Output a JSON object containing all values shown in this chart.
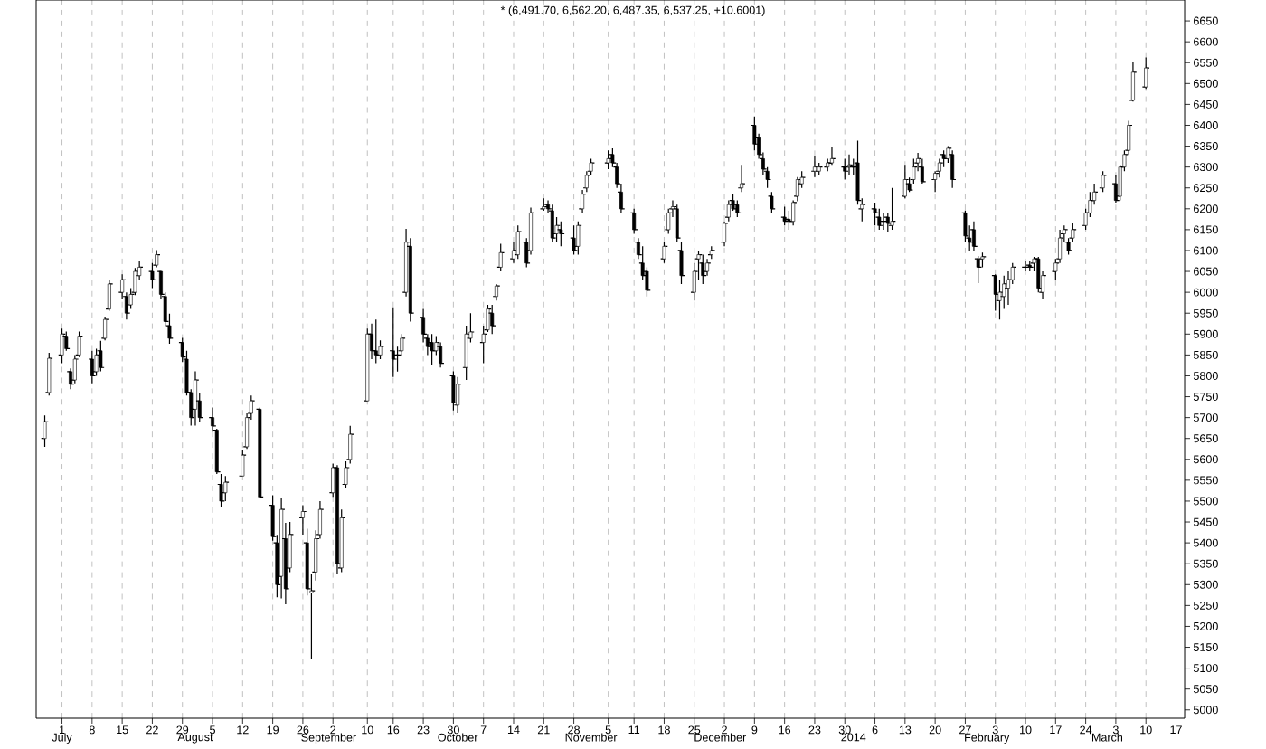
{
  "chart_data": {
    "type": "candlestick",
    "title": "* (6,491.70, 6,562.20, 6,487.35, 6,537.25, +10.6001)",
    "color": "#000000",
    "grid": "x",
    "x": [
      "2013-06-27",
      "2013-06-28",
      "2013-07-01",
      "2013-07-02",
      "2013-07-03",
      "2013-07-04",
      "2013-07-05",
      "2013-07-08",
      "2013-07-09",
      "2013-07-10",
      "2013-07-11",
      "2013-07-12",
      "2013-07-15",
      "2013-07-16",
      "2013-07-17",
      "2013-07-18",
      "2013-07-19",
      "2013-07-22",
      "2013-07-23",
      "2013-07-24",
      "2013-07-25",
      "2013-07-26",
      "2013-07-29",
      "2013-07-30",
      "2013-07-31",
      "2013-08-01",
      "2013-08-02",
      "2013-08-05",
      "2013-08-06",
      "2013-08-07",
      "2013-08-08",
      "2013-08-12",
      "2013-08-13",
      "2013-08-14",
      "2013-08-16",
      "2013-08-19",
      "2013-08-20",
      "2013-08-21",
      "2013-08-22",
      "2013-08-23",
      "2013-08-26",
      "2013-08-27",
      "2013-08-28",
      "2013-08-29",
      "2013-08-30",
      "2013-09-02",
      "2013-09-03",
      "2013-09-04",
      "2013-09-05",
      "2013-09-06",
      "2013-09-10",
      "2013-09-11",
      "2013-09-12",
      "2013-09-13",
      "2013-09-16",
      "2013-09-17",
      "2013-09-18",
      "2013-09-19",
      "2013-09-20",
      "2013-09-23",
      "2013-09-24",
      "2013-09-25",
      "2013-09-26",
      "2013-09-27",
      "2013-09-30",
      "2013-10-01",
      "2013-10-03",
      "2013-10-04",
      "2013-10-07",
      "2013-10-08",
      "2013-10-09",
      "2013-10-10",
      "2013-10-11",
      "2013-10-14",
      "2013-10-15",
      "2013-10-17",
      "2013-10-18",
      "2013-10-21",
      "2013-10-22",
      "2013-10-23",
      "2013-10-24",
      "2013-10-25",
      "2013-10-28",
      "2013-10-29",
      "2013-10-30",
      "2013-10-31",
      "2013-11-01",
      "2013-11-05",
      "2013-11-06",
      "2013-11-07",
      "2013-11-08",
      "2013-11-11",
      "2013-11-12",
      "2013-11-13",
      "2013-11-14",
      "2013-11-18",
      "2013-11-19",
      "2013-11-20",
      "2013-11-21",
      "2013-11-22",
      "2013-11-25",
      "2013-11-26",
      "2013-11-27",
      "2013-11-28",
      "2013-11-29",
      "2013-12-02",
      "2013-12-03",
      "2013-12-04",
      "2013-12-05",
      "2013-12-06",
      "2013-12-09",
      "2013-12-10",
      "2013-12-11",
      "2013-12-12",
      "2013-12-13",
      "2013-12-16",
      "2013-12-17",
      "2013-12-18",
      "2013-12-19",
      "2013-12-20",
      "2013-12-23",
      "2013-12-24",
      "2013-12-26",
      "2013-12-27",
      "2013-12-30",
      "2013-12-31",
      "2014-01-01",
      "2014-01-02",
      "2014-01-03",
      "2014-01-06",
      "2014-01-07",
      "2014-01-08",
      "2014-01-09",
      "2014-01-10",
      "2014-01-13",
      "2014-01-14",
      "2014-01-15",
      "2014-01-16",
      "2014-01-17",
      "2014-01-20",
      "2014-01-21",
      "2014-01-22",
      "2014-01-23",
      "2014-01-24",
      "2014-01-27",
      "2014-01-28",
      "2014-01-29",
      "2014-01-30",
      "2014-01-31",
      "2014-02-03",
      "2014-02-04",
      "2014-02-05",
      "2014-02-06",
      "2014-02-07",
      "2014-02-10",
      "2014-02-11",
      "2014-02-12",
      "2014-02-13",
      "2014-02-14",
      "2014-02-17",
      "2014-02-18",
      "2014-02-19",
      "2014-02-20",
      "2014-02-21",
      "2014-02-24",
      "2014-02-25",
      "2014-02-26",
      "2014-02-28",
      "2014-03-03",
      "2014-03-04",
      "2014-03-05",
      "2014-03-06",
      "2014-03-07",
      "2014-03-10"
    ],
    "ohlc": [
      [
        5650,
        5705,
        5630,
        5690
      ],
      [
        5760,
        5855,
        5753,
        5842
      ],
      [
        5850,
        5913,
        5830,
        5900
      ],
      [
        5895,
        5906,
        5860,
        5865
      ],
      [
        5810,
        5818,
        5768,
        5780
      ],
      [
        5790,
        5850,
        5782,
        5840
      ],
      [
        5850,
        5906,
        5845,
        5895
      ],
      [
        5840,
        5860,
        5782,
        5800
      ],
      [
        5810,
        5865,
        5800,
        5850
      ],
      [
        5860,
        5884,
        5811,
        5820
      ],
      [
        5890,
        5942,
        5885,
        5935
      ],
      [
        5960,
        6029,
        5956,
        6020
      ],
      [
        6000,
        6043,
        5985,
        6030
      ],
      [
        5990,
        6000,
        5935,
        5950
      ],
      [
        5970,
        6010,
        5960,
        5995
      ],
      [
        6000,
        6058,
        5993,
        6050
      ],
      [
        6040,
        6075,
        6030,
        6060
      ],
      [
        6050,
        6070,
        6010,
        6030
      ],
      [
        6065,
        6101,
        6060,
        6090
      ],
      [
        6050,
        6051,
        5985,
        5995
      ],
      [
        5990,
        6000,
        5920,
        5930
      ],
      [
        5920,
        5949,
        5877,
        5890
      ],
      [
        5880,
        5891,
        5833,
        5845
      ],
      [
        5840,
        5860,
        5753,
        5760
      ],
      [
        5760,
        5768,
        5681,
        5700
      ],
      [
        5720,
        5811,
        5681,
        5790
      ],
      [
        5740,
        5760,
        5690,
        5700
      ],
      [
        5700,
        5724,
        5666,
        5680
      ],
      [
        5670,
        5673,
        5565,
        5570
      ],
      [
        5540,
        5565,
        5485,
        5500
      ],
      [
        5520,
        5560,
        5500,
        5545
      ],
      [
        5560,
        5623,
        5560,
        5610
      ],
      [
        5630,
        5710,
        5625,
        5700
      ],
      [
        5710,
        5753,
        5695,
        5740
      ],
      [
        5720,
        5724,
        5507,
        5510
      ],
      [
        5490,
        5514,
        5405,
        5415
      ],
      [
        5400,
        5419,
        5270,
        5300
      ],
      [
        5320,
        5507,
        5267,
        5480
      ],
      [
        5410,
        5448,
        5253,
        5290
      ],
      [
        5340,
        5450,
        5330,
        5420
      ],
      [
        5460,
        5490,
        5420,
        5475
      ],
      [
        5400,
        5434,
        5274,
        5290
      ],
      [
        5280,
        5325,
        5122,
        5285
      ],
      [
        5330,
        5430,
        5310,
        5410
      ],
      [
        5420,
        5500,
        5410,
        5480
      ],
      [
        5520,
        5590,
        5510,
        5580
      ],
      [
        5580,
        5586,
        5325,
        5350
      ],
      [
        5340,
        5480,
        5330,
        5460
      ],
      [
        5540,
        5595,
        5530,
        5580
      ],
      [
        5600,
        5680,
        5590,
        5660
      ],
      [
        5740,
        5913,
        5739,
        5900
      ],
      [
        5900,
        5925,
        5840,
        5860
      ],
      [
        5860,
        5935,
        5830,
        5850
      ],
      [
        5850,
        5885,
        5840,
        5870
      ],
      [
        5860,
        5964,
        5797,
        5840
      ],
      [
        5850,
        5870,
        5810,
        5850
      ],
      [
        5860,
        5900,
        5850,
        5890
      ],
      [
        6000,
        6152,
        5990,
        6120
      ],
      [
        6110,
        6130,
        5930,
        5950
      ],
      [
        5940,
        5960,
        5880,
        5900
      ],
      [
        5890,
        5900,
        5850,
        5870
      ],
      [
        5880,
        5900,
        5826,
        5860
      ],
      [
        5860,
        5895,
        5850,
        5880
      ],
      [
        5870,
        5880,
        5820,
        5830
      ],
      [
        5800,
        5811,
        5717,
        5735
      ],
      [
        5730,
        5797,
        5710,
        5780
      ],
      [
        5820,
        5920,
        5790,
        5900
      ],
      [
        5890,
        5950,
        5880,
        5905
      ],
      [
        5880,
        5920,
        5830,
        5900
      ],
      [
        5910,
        5970,
        5905,
        5960
      ],
      [
        5950,
        5970,
        5900,
        5920
      ],
      [
        5990,
        6020,
        5980,
        6015
      ],
      [
        6060,
        6116,
        6050,
        6095
      ],
      [
        6080,
        6120,
        6070,
        6100
      ],
      [
        6090,
        6160,
        6080,
        6145
      ],
      [
        6120,
        6130,
        6060,
        6070
      ],
      [
        6100,
        6203,
        6090,
        6190
      ],
      [
        6200,
        6225,
        6195,
        6205
      ],
      [
        6210,
        6220,
        6190,
        6200
      ],
      [
        6195,
        6210,
        6120,
        6130
      ],
      [
        6140,
        6180,
        6120,
        6160
      ],
      [
        6150,
        6170,
        6110,
        6140
      ],
      [
        6130,
        6160,
        6090,
        6100
      ],
      [
        6110,
        6170,
        6090,
        6160
      ],
      [
        6200,
        6245,
        6190,
        6235
      ],
      [
        6250,
        6290,
        6240,
        6280
      ],
      [
        6290,
        6320,
        6280,
        6310
      ],
      [
        6310,
        6340,
        6295,
        6320
      ],
      [
        6330,
        6345,
        6300,
        6310
      ],
      [
        6300,
        6310,
        6250,
        6260
      ],
      [
        6240,
        6260,
        6190,
        6200
      ],
      [
        6190,
        6200,
        6140,
        6150
      ],
      [
        6120,
        6130,
        6080,
        6090
      ],
      [
        6070,
        6110,
        6030,
        6040
      ],
      [
        6050,
        6060,
        5990,
        6005
      ],
      [
        6080,
        6120,
        6070,
        6110
      ],
      [
        6150,
        6200,
        6140,
        6190
      ],
      [
        6200,
        6220,
        6180,
        6205
      ],
      [
        6200,
        6210,
        6120,
        6130
      ],
      [
        6100,
        6120,
        6020,
        6040
      ],
      [
        6000,
        6070,
        5980,
        6050
      ],
      [
        6080,
        6100,
        6030,
        6090
      ],
      [
        6070,
        6090,
        6020,
        6040
      ],
      [
        6050,
        6080,
        6040,
        6070
      ],
      [
        6090,
        6110,
        6080,
        6100
      ],
      [
        6120,
        6170,
        6110,
        6165
      ],
      [
        6180,
        6220,
        6170,
        6210
      ],
      [
        6220,
        6235,
        6195,
        6200
      ],
      [
        6210,
        6220,
        6180,
        6190
      ],
      [
        6250,
        6305,
        6240,
        6260
      ],
      [
        6400,
        6421,
        6340,
        6355
      ],
      [
        6370,
        6380,
        6320,
        6330
      ],
      [
        6320,
        6335,
        6280,
        6295
      ],
      [
        6290,
        6300,
        6250,
        6270
      ],
      [
        6230,
        6240,
        6190,
        6200
      ],
      [
        6180,
        6205,
        6160,
        6170
      ],
      [
        6175,
        6195,
        6150,
        6170
      ],
      [
        6170,
        6220,
        6160,
        6215
      ],
      [
        6230,
        6276,
        6218,
        6270
      ],
      [
        6260,
        6290,
        6250,
        6275
      ],
      [
        6290,
        6326,
        6276,
        6300
      ],
      [
        6290,
        6310,
        6280,
        6300
      ],
      [
        6300,
        6320,
        6290,
        6310
      ],
      [
        6310,
        6348,
        6305,
        6320
      ],
      [
        6300,
        6320,
        6270,
        6290
      ],
      [
        6300,
        6330,
        6280,
        6305
      ],
      [
        6300,
        6320,
        6280,
        6300
      ],
      [
        6310,
        6363,
        6210,
        6220
      ],
      [
        6200,
        6225,
        6170,
        6210
      ],
      [
        6200,
        6215,
        6160,
        6190
      ],
      [
        6180,
        6200,
        6150,
        6160
      ],
      [
        6170,
        6190,
        6150,
        6170
      ],
      [
        6180,
        6190,
        6145,
        6165
      ],
      [
        6160,
        6250,
        6150,
        6170
      ],
      [
        6230,
        6305,
        6225,
        6270
      ],
      [
        6260,
        6275,
        6240,
        6245
      ],
      [
        6270,
        6320,
        6260,
        6300
      ],
      [
        6310,
        6334,
        6290,
        6320
      ],
      [
        6300,
        6320,
        6260,
        6265
      ],
      [
        6270,
        6290,
        6240,
        6285
      ],
      [
        6290,
        6320,
        6275,
        6310
      ],
      [
        6330,
        6340,
        6300,
        6320
      ],
      [
        6320,
        6350,
        6310,
        6345
      ],
      [
        6330,
        6340,
        6250,
        6270
      ],
      [
        6190,
        6196,
        6120,
        6135
      ],
      [
        6130,
        6160,
        6100,
        6120
      ],
      [
        6150,
        6170,
        6100,
        6110
      ],
      [
        6080,
        6087,
        6022,
        6060
      ],
      [
        6080,
        6095,
        6060,
        6085
      ],
      [
        6040,
        6043,
        5956,
        5995
      ],
      [
        5980,
        6029,
        5935,
        6000
      ],
      [
        5990,
        6040,
        5960,
        6020
      ],
      [
        6010,
        6050,
        5970,
        6030
      ],
      [
        6030,
        6070,
        6020,
        6060
      ],
      [
        6060,
        6075,
        6050,
        6060
      ],
      [
        6065,
        6075,
        6050,
        6060
      ],
      [
        6070,
        6085,
        6050,
        6080
      ],
      [
        6080,
        6085,
        6000,
        6010
      ],
      [
        6000,
        6050,
        5985,
        6040
      ],
      [
        6050,
        6080,
        6030,
        6070
      ],
      [
        6080,
        6150,
        6070,
        6130
      ],
      [
        6140,
        6160,
        6120,
        6150
      ],
      [
        6120,
        6130,
        6090,
        6100
      ],
      [
        6130,
        6165,
        6120,
        6150
      ],
      [
        6160,
        6200,
        6150,
        6190
      ],
      [
        6190,
        6240,
        6180,
        6220
      ],
      [
        6220,
        6260,
        6210,
        6240
      ],
      [
        6250,
        6290,
        6240,
        6280
      ],
      [
        6260,
        6280,
        6215,
        6220
      ],
      [
        6230,
        6305,
        6220,
        6300
      ],
      [
        6300,
        6340,
        6290,
        6330
      ],
      [
        6340,
        6411,
        6330,
        6400
      ],
      [
        6460,
        6551,
        6457,
        6527
      ],
      [
        6491.7,
        6562.2,
        6487.35,
        6537.25
      ]
    ],
    "xlim": [
      "2013-06-25",
      "2014-03-19"
    ],
    "ylim": [
      4980,
      6700
    ],
    "yticks": [
      5000,
      5050,
      5100,
      5150,
      5200,
      5250,
      5300,
      5350,
      5400,
      5450,
      5500,
      5550,
      5600,
      5650,
      5700,
      5750,
      5800,
      5850,
      5900,
      5950,
      6000,
      6050,
      6100,
      6150,
      6200,
      6250,
      6300,
      6350,
      6400,
      6450,
      6500,
      6550,
      6600,
      6650
    ],
    "xticks": [
      {
        "value": "2013-07-01",
        "label": "1"
      },
      {
        "value": "2013-07-08",
        "label": "8"
      },
      {
        "value": "2013-07-15",
        "label": "15"
      },
      {
        "value": "2013-07-22",
        "label": "22"
      },
      {
        "value": "2013-07-29",
        "label": "29"
      },
      {
        "value": "2013-08-05",
        "label": "5"
      },
      {
        "value": "2013-08-12",
        "label": "12"
      },
      {
        "value": "2013-08-19",
        "label": "19"
      },
      {
        "value": "2013-08-26",
        "label": "26"
      },
      {
        "value": "2013-09-02",
        "label": "2"
      },
      {
        "value": "2013-09-10",
        "label": "10"
      },
      {
        "value": "2013-09-16",
        "label": "16"
      },
      {
        "value": "2013-09-23",
        "label": "23"
      },
      {
        "value": "2013-09-30",
        "label": "30"
      },
      {
        "value": "2013-10-07",
        "label": "7"
      },
      {
        "value": "2013-10-14",
        "label": "14"
      },
      {
        "value": "2013-10-21",
        "label": "21"
      },
      {
        "value": "2013-10-28",
        "label": "28"
      },
      {
        "value": "2013-11-05",
        "label": "5"
      },
      {
        "value": "2013-11-11",
        "label": "11"
      },
      {
        "value": "2013-11-18",
        "label": "18"
      },
      {
        "value": "2013-11-25",
        "label": "25"
      },
      {
        "value": "2013-12-02",
        "label": "2"
      },
      {
        "value": "2013-12-09",
        "label": "9"
      },
      {
        "value": "2013-12-16",
        "label": "16"
      },
      {
        "value": "2013-12-23",
        "label": "23"
      },
      {
        "value": "2013-12-30",
        "label": "30"
      },
      {
        "value": "2014-01-06",
        "label": "6"
      },
      {
        "value": "2014-01-13",
        "label": "13"
      },
      {
        "value": "2014-01-20",
        "label": "20"
      },
      {
        "value": "2014-01-27",
        "label": "27"
      },
      {
        "value": "2014-02-03",
        "label": "3"
      },
      {
        "value": "2014-02-10",
        "label": "10"
      },
      {
        "value": "2014-02-17",
        "label": "17"
      },
      {
        "value": "2014-02-24",
        "label": "24"
      },
      {
        "value": "2014-03-03",
        "label": "3"
      },
      {
        "value": "2014-03-10",
        "label": "10"
      },
      {
        "value": "2014-03-17",
        "label": "17"
      }
    ],
    "x2lim": [
      "2013-06-25",
      "2014-03-19"
    ],
    "x2ticks": [
      {
        "value": "2013-07-01",
        "label": "July"
      },
      {
        "value": "2013-08-01",
        "label": "August"
      },
      {
        "value": "2013-09-01",
        "label": "September"
      },
      {
        "value": "2013-10-01",
        "label": "October"
      },
      {
        "value": "2013-11-01",
        "label": "November"
      },
      {
        "value": "2013-12-01",
        "label": "December"
      },
      {
        "value": "2014-01-01",
        "label": "2014"
      },
      {
        "value": "2014-02-01",
        "label": "February"
      },
      {
        "value": "2014-03-01",
        "label": "March"
      }
    ]
  }
}
